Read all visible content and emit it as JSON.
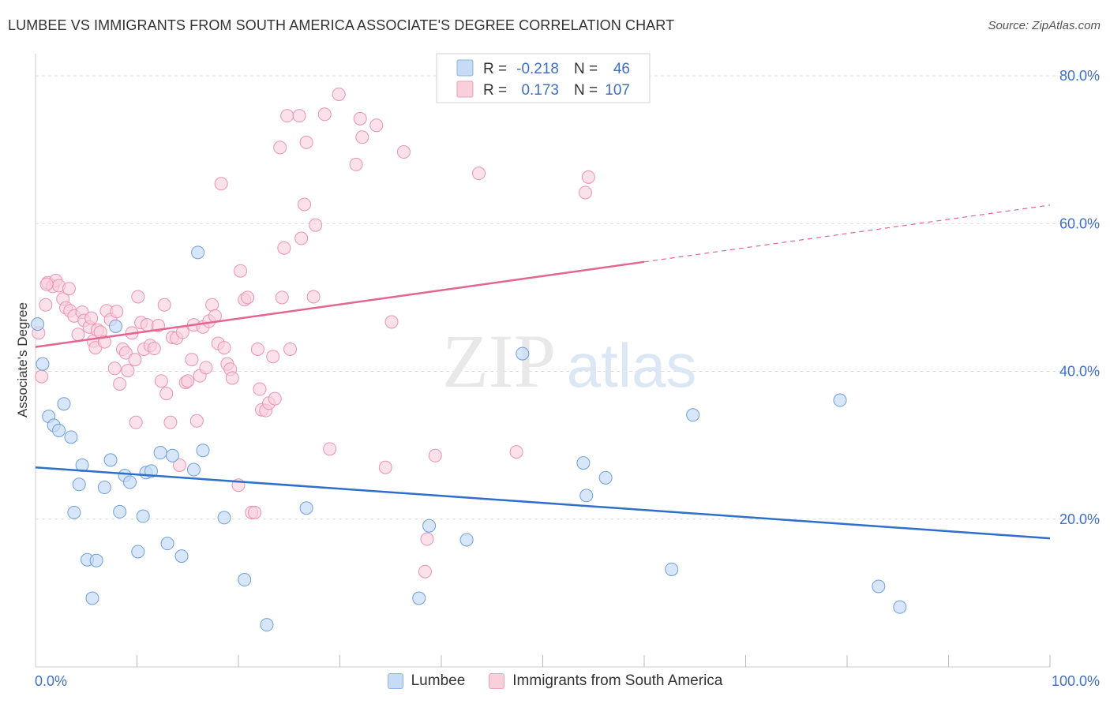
{
  "title": "LUMBEE VS IMMIGRANTS FROM SOUTH AMERICA ASSOCIATE'S DEGREE CORRELATION CHART",
  "source": "Source: ZipAtlas.com",
  "watermark": {
    "zip": "ZIP",
    "atlas": "atlas"
  },
  "colors": {
    "blue_fill": "#c6dbf5",
    "blue_stroke": "#6f9fdc",
    "blue_line": "#2f6fcc",
    "pink_fill": "#f9cfdc",
    "pink_stroke": "#eb93b0",
    "pink_line": "#e3668f",
    "axis_label": "#3f6fc7",
    "grid": "#dddddd"
  },
  "legend": {
    "r_label": "R =",
    "n_label": "N =",
    "rows": [
      {
        "r": "-0.218",
        "n": "46"
      },
      {
        "r": "0.173",
        "n": "107"
      }
    ]
  },
  "chart_data": {
    "type": "scatter",
    "title": "LUMBEE VS IMMIGRANTS FROM SOUTH AMERICA ASSOCIATE'S DEGREE CORRELATION CHART",
    "xlabel": "",
    "ylabel": "Associate's Degree",
    "xlim": [
      0,
      100
    ],
    "ylim": [
      0,
      83
    ],
    "x_tick_labels": [
      "0.0%",
      "100.0%"
    ],
    "y_ticks": [
      20,
      40,
      60,
      80
    ],
    "y_tick_labels": [
      "20.0%",
      "40.0%",
      "60.0%",
      "80.0%"
    ],
    "grid": true,
    "legend_position": "top-center",
    "series": [
      {
        "name": "Lumbee",
        "r": -0.218,
        "n": 46,
        "trend": {
          "x": [
            0,
            100
          ],
          "y": [
            27.0,
            17.4
          ],
          "dashed_from": null
        },
        "points": [
          [
            0.2,
            46.4
          ],
          [
            0.7,
            41.0
          ],
          [
            1.3,
            33.9
          ],
          [
            1.8,
            32.7
          ],
          [
            2.3,
            32.0
          ],
          [
            2.8,
            35.6
          ],
          [
            3.5,
            31.1
          ],
          [
            3.8,
            20.9
          ],
          [
            4.3,
            24.7
          ],
          [
            4.6,
            27.3
          ],
          [
            5.1,
            14.5
          ],
          [
            5.6,
            9.3
          ],
          [
            6.0,
            14.4
          ],
          [
            6.8,
            24.3
          ],
          [
            7.4,
            28.0
          ],
          [
            7.9,
            46.1
          ],
          [
            8.3,
            21.0
          ],
          [
            8.8,
            25.9
          ],
          [
            9.3,
            25.0
          ],
          [
            10.1,
            15.6
          ],
          [
            10.6,
            20.4
          ],
          [
            10.9,
            26.3
          ],
          [
            11.4,
            26.5
          ],
          [
            12.3,
            29.0
          ],
          [
            13.0,
            16.7
          ],
          [
            13.5,
            28.6
          ],
          [
            14.4,
            15.0
          ],
          [
            15.6,
            26.7
          ],
          [
            16.0,
            56.1
          ],
          [
            16.5,
            29.3
          ],
          [
            18.6,
            20.2
          ],
          [
            20.6,
            11.8
          ],
          [
            22.8,
            5.7
          ],
          [
            26.7,
            21.5
          ],
          [
            37.8,
            9.3
          ],
          [
            38.8,
            19.1
          ],
          [
            42.5,
            17.2
          ],
          [
            48.0,
            42.4
          ],
          [
            54.0,
            27.6
          ],
          [
            54.3,
            23.2
          ],
          [
            56.2,
            25.6
          ],
          [
            62.7,
            13.2
          ],
          [
            64.8,
            34.1
          ],
          [
            79.3,
            36.1
          ],
          [
            83.1,
            10.9
          ],
          [
            85.2,
            8.1
          ]
        ]
      },
      {
        "name": "Immigrants from South America",
        "r": 0.173,
        "n": 107,
        "trend": {
          "x": [
            0,
            100
          ],
          "y": [
            43.3,
            62.5
          ],
          "dashed_from": 60
        },
        "points": [
          [
            0.3,
            45.2
          ],
          [
            0.6,
            39.3
          ],
          [
            1.0,
            49.0
          ],
          [
            1.2,
            52.0
          ],
          [
            1.7,
            51.5
          ],
          [
            2.0,
            52.3
          ],
          [
            2.3,
            51.6
          ],
          [
            2.7,
            49.8
          ],
          [
            3.0,
            48.6
          ],
          [
            3.4,
            48.2
          ],
          [
            3.8,
            47.5
          ],
          [
            4.2,
            45.0
          ],
          [
            4.6,
            48.0
          ],
          [
            4.8,
            46.9
          ],
          [
            5.3,
            46.0
          ],
          [
            5.5,
            47.2
          ],
          [
            5.7,
            44.1
          ],
          [
            5.9,
            43.2
          ],
          [
            6.1,
            45.6
          ],
          [
            6.4,
            45.3
          ],
          [
            6.8,
            44.0
          ],
          [
            7.0,
            48.2
          ],
          [
            7.4,
            47.0
          ],
          [
            7.8,
            40.4
          ],
          [
            8.0,
            48.1
          ],
          [
            8.3,
            38.3
          ],
          [
            8.6,
            43.0
          ],
          [
            8.9,
            42.5
          ],
          [
            9.1,
            40.1
          ],
          [
            9.5,
            45.2
          ],
          [
            9.9,
            33.1
          ],
          [
            10.1,
            50.1
          ],
          [
            10.4,
            46.6
          ],
          [
            10.7,
            43.0
          ],
          [
            11.0,
            46.3
          ],
          [
            11.3,
            43.5
          ],
          [
            11.7,
            43.1
          ],
          [
            12.1,
            46.2
          ],
          [
            12.4,
            38.7
          ],
          [
            12.7,
            49.0
          ],
          [
            12.9,
            37.0
          ],
          [
            13.3,
            33.1
          ],
          [
            13.5,
            44.6
          ],
          [
            13.9,
            44.5
          ],
          [
            14.2,
            27.3
          ],
          [
            14.5,
            45.3
          ],
          [
            14.8,
            38.5
          ],
          [
            15.0,
            38.7
          ],
          [
            15.4,
            41.6
          ],
          [
            15.6,
            46.3
          ],
          [
            15.9,
            33.3
          ],
          [
            16.2,
            39.4
          ],
          [
            16.5,
            46.0
          ],
          [
            16.8,
            40.5
          ],
          [
            17.1,
            46.8
          ],
          [
            17.4,
            49.0
          ],
          [
            17.7,
            47.5
          ],
          [
            18.0,
            43.8
          ],
          [
            18.3,
            65.4
          ],
          [
            18.6,
            43.2
          ],
          [
            18.9,
            41.0
          ],
          [
            19.2,
            40.3
          ],
          [
            19.4,
            39.1
          ],
          [
            20.0,
            24.6
          ],
          [
            20.2,
            53.6
          ],
          [
            20.6,
            49.7
          ],
          [
            20.9,
            50.0
          ],
          [
            21.3,
            20.9
          ],
          [
            21.6,
            20.9
          ],
          [
            21.9,
            43.0
          ],
          [
            22.1,
            37.6
          ],
          [
            22.3,
            34.8
          ],
          [
            22.7,
            34.7
          ],
          [
            23.0,
            35.7
          ],
          [
            23.4,
            42.0
          ],
          [
            23.6,
            36.3
          ],
          [
            24.1,
            70.3
          ],
          [
            24.3,
            50.0
          ],
          [
            24.5,
            56.7
          ],
          [
            24.8,
            74.6
          ],
          [
            25.1,
            43.0
          ],
          [
            26.0,
            74.6
          ],
          [
            26.2,
            58.0
          ],
          [
            26.5,
            62.6
          ],
          [
            26.7,
            71.0
          ],
          [
            27.4,
            50.1
          ],
          [
            27.6,
            59.8
          ],
          [
            28.5,
            74.8
          ],
          [
            29.0,
            29.5
          ],
          [
            29.9,
            77.5
          ],
          [
            31.6,
            68.0
          ],
          [
            32.0,
            74.2
          ],
          [
            32.2,
            71.7
          ],
          [
            33.6,
            73.3
          ],
          [
            34.5,
            27.0
          ],
          [
            35.1,
            46.7
          ],
          [
            36.3,
            69.7
          ],
          [
            38.4,
            12.9
          ],
          [
            38.6,
            17.3
          ],
          [
            39.4,
            28.6
          ],
          [
            43.7,
            66.8
          ],
          [
            47.4,
            29.1
          ],
          [
            54.2,
            64.2
          ],
          [
            54.5,
            66.3
          ],
          [
            1.1,
            51.8
          ],
          [
            9.8,
            41.6
          ],
          [
            3.3,
            51.2
          ]
        ]
      }
    ]
  }
}
